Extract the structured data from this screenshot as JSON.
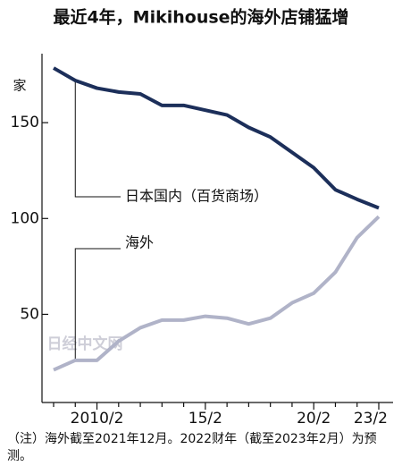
{
  "chart_data": {
    "type": "line",
    "title": "最近4年，Mikihouse的海外店铺猛增",
    "y_unit": "家",
    "categories": [
      null,
      null,
      "2010/2",
      null,
      null,
      null,
      null,
      "15/2",
      null,
      null,
      null,
      null,
      "20/2",
      null,
      null,
      "23/2"
    ],
    "series": [
      {
        "name": "日本国内（百货商场）",
        "color": "#1c2f5a",
        "values": [
          178.5,
          172,
          168,
          166,
          165,
          159,
          159,
          156.5,
          154,
          147.5,
          142.5,
          134.5,
          126.5,
          115,
          110,
          105.5
        ]
      },
      {
        "name": "海外",
        "color": "#b0b3c8",
        "values": [
          21,
          26,
          26,
          36,
          43,
          47,
          47,
          49,
          48,
          45,
          48,
          56,
          61,
          72,
          90,
          101
        ]
      }
    ],
    "ylim": [
      4,
      186
    ],
    "yticks": [
      50,
      100,
      150
    ],
    "watermark": "日经中文网",
    "note": "（注）海外截至2021年12月。2022财年（截至2023年2月）为预测。"
  }
}
